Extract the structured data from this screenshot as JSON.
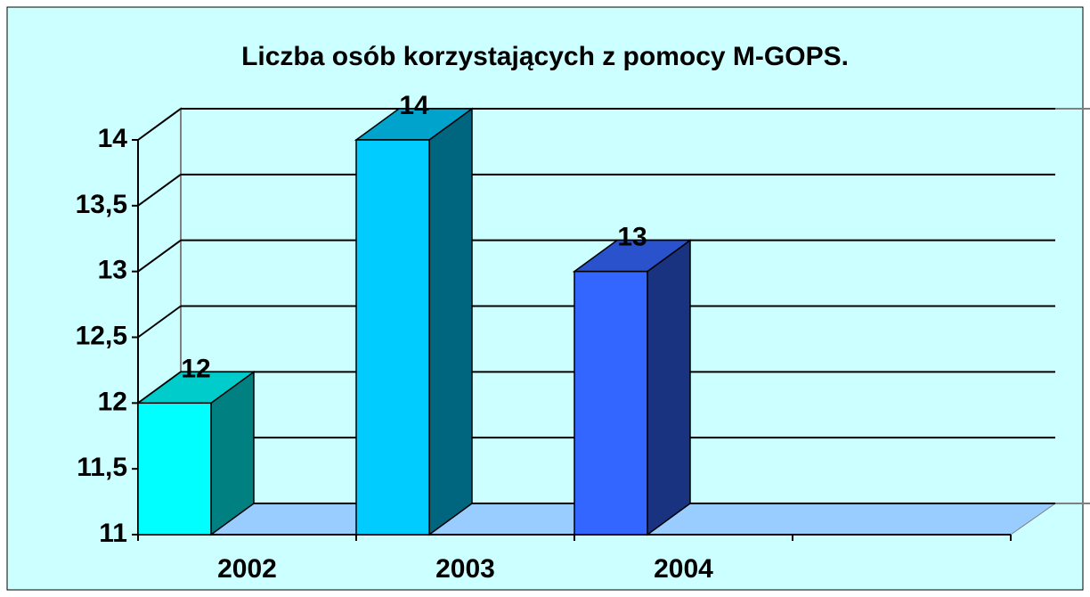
{
  "chart_data": {
    "type": "bar3d",
    "title": "Liczba osób korzystających z pomocy M-GOPS.",
    "categories": [
      "2002",
      "2003",
      "2004",
      null
    ],
    "values": [
      12,
      14,
      13,
      null
    ],
    "colors": [
      "#00ffff",
      "#00ccff",
      "#3366ff",
      null
    ],
    "ylim": [
      11,
      14
    ],
    "yticks": [
      11,
      {
        "value": 11.5,
        "label": "11,5"
      },
      12,
      {
        "value": 12.5,
        "label": "12,5"
      },
      13,
      {
        "value": 13.5,
        "label": "13,5"
      },
      14
    ],
    "grid": true
  }
}
